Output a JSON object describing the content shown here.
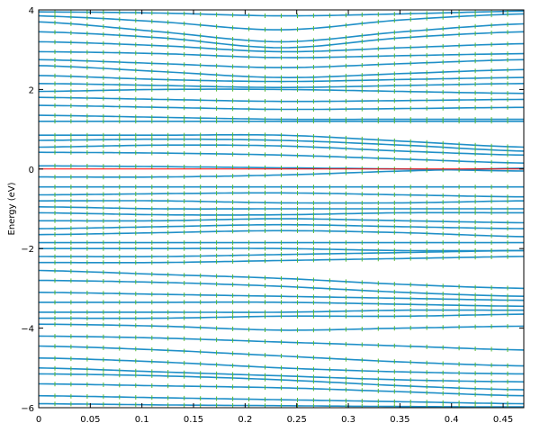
{
  "chart_data": {
    "type": "line",
    "title": "",
    "xlabel": "",
    "ylabel": "Energy (eV)",
    "xlim": [
      0,
      0.47
    ],
    "ylim": [
      -6,
      4
    ],
    "x_ticks": [
      0,
      0.05,
      0.1,
      0.15,
      0.2,
      0.25,
      0.3,
      0.35,
      0.4,
      0.45
    ],
    "x_tick_labels": [
      "0",
      "0.05",
      "0.1",
      "0.15",
      "0.2",
      "0.25",
      "0.3",
      "0.35",
      "0.4",
      "0.45"
    ],
    "y_ticks": [
      -6,
      -4,
      -2,
      0,
      2,
      4
    ],
    "y_tick_labels": [
      "−6",
      "−4",
      "−2",
      "0",
      "2",
      "4"
    ],
    "grid": false,
    "line_color": "#1f8fc8",
    "marker_color": "#55bb33",
    "fermi_level": {
      "y": 0,
      "color": "#ff0000"
    },
    "k": [
      0,
      0.1175,
      0.235,
      0.3525,
      0.47
    ],
    "bands": [
      [
        3.95,
        3.92,
        3.85,
        3.9,
        3.97
      ],
      [
        3.85,
        3.7,
        3.5,
        3.75,
        3.9
      ],
      [
        3.7,
        3.45,
        3.2,
        3.45,
        3.65
      ],
      [
        3.45,
        3.3,
        3.05,
        3.3,
        3.45
      ],
      [
        3.2,
        3.1,
        2.95,
        3.05,
        3.15
      ],
      [
        2.95,
        2.9,
        2.8,
        2.85,
        2.9
      ],
      [
        2.75,
        2.65,
        2.55,
        2.65,
        2.75
      ],
      [
        2.6,
        2.45,
        2.3,
        2.4,
        2.5
      ],
      [
        2.35,
        2.25,
        2.2,
        2.25,
        2.3
      ],
      [
        2.15,
        2.1,
        2.05,
        2.1,
        2.15
      ],
      [
        1.95,
        2.0,
        2.0,
        1.95,
        1.9
      ],
      [
        1.8,
        1.75,
        1.7,
        1.72,
        1.75
      ],
      [
        1.6,
        1.55,
        1.5,
        1.52,
        1.55
      ],
      [
        1.35,
        1.3,
        1.25,
        1.25,
        1.25
      ],
      [
        1.2,
        1.2,
        1.2,
        1.2,
        1.2
      ],
      [
        0.85,
        0.85,
        0.85,
        0.7,
        0.55
      ],
      [
        0.72,
        0.75,
        0.72,
        0.6,
        0.45
      ],
      [
        0.55,
        0.6,
        0.58,
        0.45,
        0.35
      ],
      [
        0.42,
        0.4,
        0.35,
        0.25,
        0.15
      ],
      [
        0.08,
        0.06,
        0.03,
        0.0,
        -0.05
      ],
      [
        -0.2,
        -0.2,
        -0.15,
        -0.05,
        0.02
      ],
      [
        -0.45,
        -0.45,
        -0.45,
        -0.45,
        -0.45
      ],
      [
        -0.65,
        -0.62,
        -0.6,
        -0.65,
        -0.7
      ],
      [
        -0.8,
        -0.8,
        -0.85,
        -0.85,
        -0.8
      ],
      [
        -0.95,
        -1.0,
        -1.0,
        -1.0,
        -1.0
      ],
      [
        -1.1,
        -1.15,
        -1.15,
        -1.1,
        -1.1
      ],
      [
        -1.3,
        -1.3,
        -1.25,
        -1.3,
        -1.35
      ],
      [
        -1.5,
        -1.45,
        -1.4,
        -1.45,
        -1.5
      ],
      [
        -1.65,
        -1.6,
        -1.55,
        -1.6,
        -1.7
      ],
      [
        -1.85,
        -1.85,
        -1.85,
        -1.85,
        -1.85
      ],
      [
        -2.0,
        -2.0,
        -2.0,
        -2.05,
        -2.05
      ],
      [
        -2.2,
        -2.2,
        -2.15,
        -2.1,
        -2.05
      ],
      [
        -2.35,
        -2.35,
        -2.3,
        -2.25,
        -2.2
      ],
      [
        -2.55,
        -2.65,
        -2.75,
        -2.9,
        -3.0
      ],
      [
        -2.8,
        -2.85,
        -2.95,
        -3.1,
        -3.2
      ],
      [
        -3.1,
        -3.15,
        -3.2,
        -3.25,
        -3.3
      ],
      [
        -3.35,
        -3.35,
        -3.35,
        -3.4,
        -3.45
      ],
      [
        -3.6,
        -3.6,
        -3.6,
        -3.55,
        -3.55
      ],
      [
        -3.75,
        -3.75,
        -3.7,
        -3.7,
        -3.65
      ],
      [
        -3.9,
        -3.95,
        -4.05,
        -4.0,
        -3.95
      ],
      [
        -4.2,
        -4.25,
        -4.35,
        -4.45,
        -4.55
      ],
      [
        -4.45,
        -4.55,
        -4.7,
        -4.85,
        -4.95
      ],
      [
        -4.75,
        -4.85,
        -5.0,
        -5.1,
        -5.15
      ],
      [
        -5.0,
        -5.1,
        -5.2,
        -5.3,
        -5.35
      ],
      [
        -5.15,
        -5.2,
        -5.3,
        -5.45,
        -5.55
      ],
      [
        -5.4,
        -5.45,
        -5.5,
        -5.6,
        -5.7
      ],
      [
        -5.7,
        -5.75,
        -5.8,
        -5.85,
        -5.9
      ],
      [
        -5.9,
        -5.93,
        -5.95,
        -5.97,
        -5.98
      ]
    ]
  }
}
